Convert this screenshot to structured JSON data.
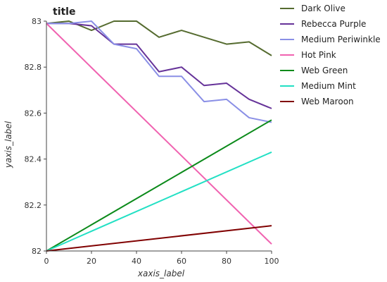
{
  "chart_data": {
    "type": "line",
    "title": "title",
    "xlabel": "xaxis_label",
    "ylabel": "yaxis_label",
    "xlim": [
      0,
      100
    ],
    "ylim": [
      82.0,
      83.0
    ],
    "x_ticks": [
      "0",
      "20",
      "40",
      "60",
      "80",
      "100"
    ],
    "y_ticks": [
      "82",
      "82.2",
      "82.4",
      "82.6",
      "82.8",
      "83"
    ],
    "legend_position": "right",
    "grid": false,
    "series": [
      {
        "name": "Dark Olive",
        "color": "#556b2f",
        "x": [
          0,
          10,
          20,
          30,
          40,
          50,
          60,
          70,
          80,
          90,
          100
        ],
        "y": [
          82.99,
          83.0,
          82.96,
          83.0,
          83.0,
          82.93,
          82.96,
          82.93,
          82.9,
          82.91,
          82.85
        ]
      },
      {
        "name": "Rebecca Purple",
        "color": "#663399",
        "x": [
          0,
          10,
          20,
          30,
          40,
          50,
          60,
          70,
          80,
          90,
          100
        ],
        "y": [
          82.99,
          82.99,
          82.98,
          82.9,
          82.9,
          82.78,
          82.8,
          82.72,
          82.73,
          82.66,
          82.62
        ]
      },
      {
        "name": "Medium Periwinkle",
        "color": "#8a8fe6",
        "x": [
          0,
          10,
          20,
          30,
          40,
          50,
          60,
          70,
          80,
          90,
          100
        ],
        "y": [
          82.99,
          82.99,
          83.0,
          82.9,
          82.88,
          82.76,
          82.76,
          82.65,
          82.66,
          82.58,
          82.56
        ]
      },
      {
        "name": "Hot Pink",
        "color": "#f062b0",
        "x": [
          0,
          100
        ],
        "y": [
          82.99,
          82.03
        ]
      },
      {
        "name": "Web Green",
        "color": "#0b8a1a",
        "x": [
          0,
          100
        ],
        "y": [
          82.0,
          82.57
        ]
      },
      {
        "name": "Medium Mint",
        "color": "#22e0c4",
        "x": [
          0,
          100
        ],
        "y": [
          82.0,
          82.43
        ]
      },
      {
        "name": "Web Maroon",
        "color": "#800000",
        "x": [
          0,
          100
        ],
        "y": [
          82.0,
          82.11
        ]
      }
    ]
  }
}
